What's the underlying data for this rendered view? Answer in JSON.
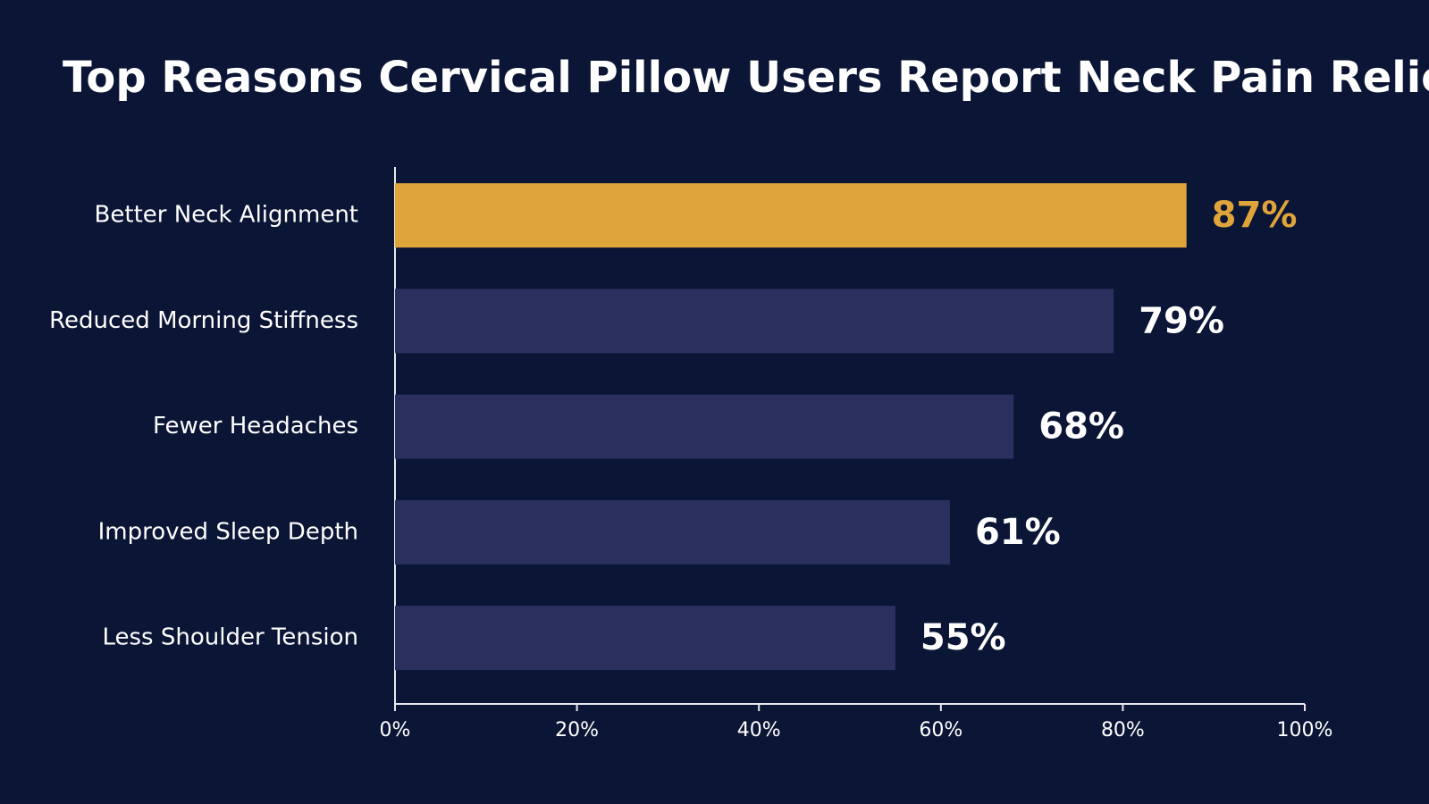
{
  "chart_data": {
    "type": "hbar",
    "title": "Top Reasons Cervical Pillow Users Report Neck Pain Relief",
    "categories": [
      "Better Neck Alignment",
      "Reduced Morning Stiffness",
      "Fewer Headaches",
      "Improved Sleep Depth",
      "Less Shoulder Tension"
    ],
    "values": [
      87,
      79,
      68,
      61,
      55
    ],
    "value_labels": [
      "87%",
      "79%",
      "68%",
      "61%",
      "55%"
    ],
    "colors": [
      "#e0a53a",
      "#2b2f5e",
      "#2b2f5e",
      "#2b2f5e",
      "#2b2f5e"
    ],
    "value_label_colors": [
      "#e0a53a",
      "#ffffff",
      "#ffffff",
      "#ffffff",
      "#ffffff"
    ],
    "xlim": [
      0,
      100
    ],
    "xticks": [
      {
        "value": 0,
        "label": "0%"
      },
      {
        "value": 20,
        "label": "20%"
      },
      {
        "value": 40,
        "label": "40%"
      },
      {
        "value": 60,
        "label": "60%"
      },
      {
        "value": 80,
        "label": "80%"
      },
      {
        "value": 100,
        "label": "100%"
      }
    ],
    "grid": false
  }
}
